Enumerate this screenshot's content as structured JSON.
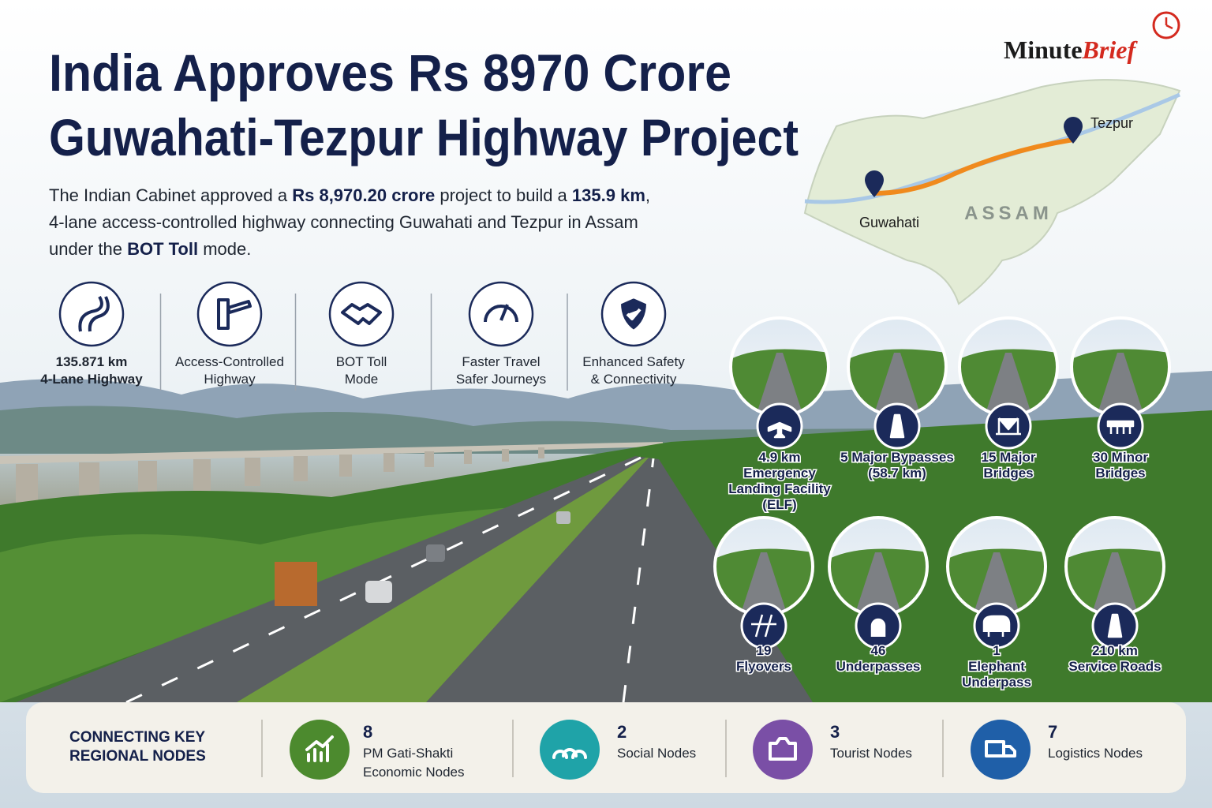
{
  "brand": {
    "part1": "Minute",
    "part2": "Brief"
  },
  "header": {
    "title_lines": [
      "India Approves Rs 8970 Crore",
      "Guwahati-Tezpur Highway Project"
    ]
  },
  "intro": {
    "lines": [
      [
        {
          "text": "The Indian Cabinet approved a "
        },
        {
          "text": "Rs 8,970.20 crore",
          "bold": true
        },
        {
          "text": " project to build a "
        },
        {
          "text": "135.9 km",
          "bold": true
        },
        {
          "text": ","
        }
      ],
      [
        {
          "text": "4-lane access-controlled highway connecting Guwahati and Tezpur in Assam"
        }
      ],
      [
        {
          "text": "under the "
        },
        {
          "text": "BOT Toll",
          "bold": true
        },
        {
          "text": " mode."
        }
      ]
    ]
  },
  "map": {
    "region": "ASSAM",
    "cities": [
      "Guwahati",
      "Tezpur"
    ]
  },
  "features": [
    {
      "lines": [
        "135.871 km",
        "4-Lane Highway"
      ],
      "bold": true
    },
    {
      "lines": [
        "Access-Controlled",
        "Highway"
      ]
    },
    {
      "lines": [
        "BOT Toll",
        "Mode"
      ]
    },
    {
      "lines": [
        "Faster Travel",
        "Safer Journeys"
      ]
    },
    {
      "lines": [
        "Enhanced Safety",
        "& Connectivity"
      ]
    }
  ],
  "stats": [
    {
      "lines": [
        "4.9 km",
        "Emergency",
        "Landing Facility",
        "(ELF)"
      ]
    },
    {
      "lines": [
        "5 Major Bypasses",
        "(58.7 km)"
      ]
    },
    {
      "lines": [
        "15 Major",
        "Bridges"
      ]
    },
    {
      "lines": [
        "30 Minor",
        "Bridges"
      ]
    },
    {
      "lines": [
        "19",
        "Flyovers"
      ]
    },
    {
      "lines": [
        "46",
        "Underpasses"
      ]
    },
    {
      "lines": [
        "1",
        "Elephant",
        "Underpass"
      ]
    },
    {
      "lines": [
        "210 km",
        "Service Roads"
      ]
    }
  ],
  "nodes": {
    "heading_lines": [
      "CONNECTING KEY",
      "REGIONAL NODES"
    ],
    "items": [
      {
        "count": 8,
        "label_lines": [
          "PM Gati-Shakti",
          "Economic Nodes"
        ]
      },
      {
        "count": 2,
        "label_lines": [
          "Social Nodes"
        ]
      },
      {
        "count": 3,
        "label_lines": [
          "Tourist Nodes"
        ]
      },
      {
        "count": 7,
        "label_lines": [
          "Logistics Nodes"
        ]
      }
    ]
  }
}
